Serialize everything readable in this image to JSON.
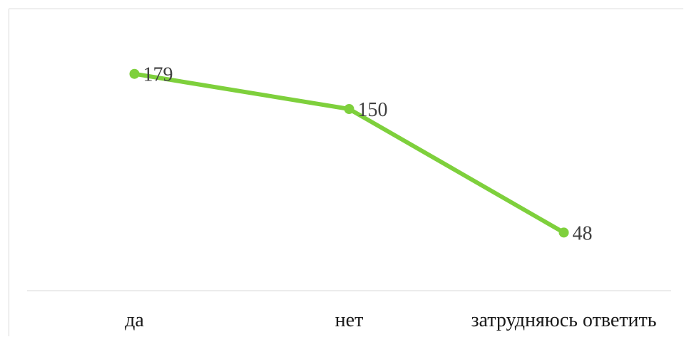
{
  "chart_data": {
    "type": "line",
    "categories": [
      "да",
      "нет",
      "затрудняюсь ответить"
    ],
    "series": [
      {
        "values": [
          179,
          150,
          48
        ]
      }
    ],
    "data_labels": [
      "179",
      "150",
      "48"
    ],
    "title": "",
    "xlabel": "",
    "ylabel": "",
    "ylim": [
      0,
      220
    ],
    "grid": false,
    "legend": "none",
    "line_color": "#7ed03c",
    "marker_color": "#7ed03c",
    "axis_color": "#d9d9d9"
  }
}
